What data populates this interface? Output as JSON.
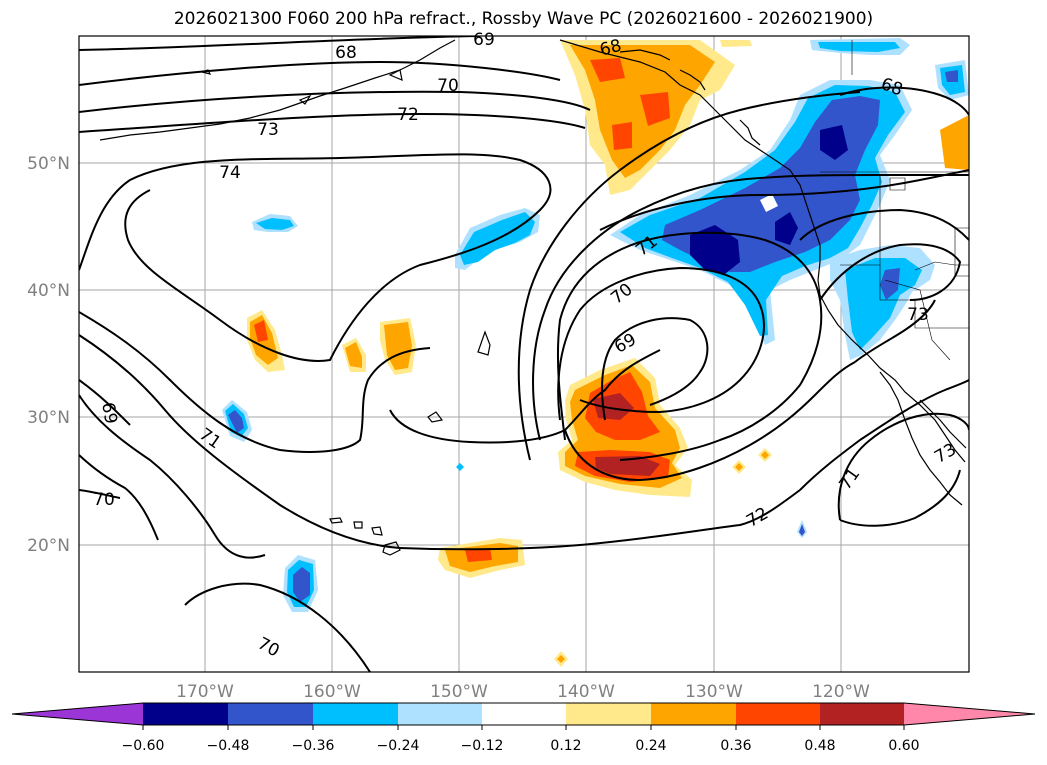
{
  "title": "2026021300 F060 200 hPa refract., Rossby Wave PC (2026021600 - 2026021900)",
  "lat_labels": [
    "50°N",
    "40°N",
    "30°N",
    "20°N"
  ],
  "lon_labels": [
    "170°W",
    "160°W",
    "150°W",
    "140°W",
    "130°W",
    "120°W"
  ],
  "contour_labels": [
    "68",
    "69",
    "70",
    "72",
    "73",
    "74",
    "71",
    "70",
    "69",
    "73",
    "69",
    "71",
    "70",
    "70",
    "72",
    "71",
    "73",
    "68",
    "68"
  ],
  "colorbar": {
    "ticks": [
      "−0.60",
      "−0.48",
      "−0.36",
      "−0.24",
      "−0.12",
      "0.12",
      "0.24",
      "0.36",
      "0.48",
      "0.60"
    ],
    "colors": {
      "under": "#9b35d6",
      "neg060": "#00008b",
      "neg048": "#3355cc",
      "neg036": "#00bfff",
      "neg024": "#aee0ff",
      "neutral": "#ffffff",
      "pos012": "#ffe98a",
      "pos024": "#ffa500",
      "pos036": "#ff4500",
      "pos048": "#b22222",
      "over": "#ff88aa"
    }
  }
}
